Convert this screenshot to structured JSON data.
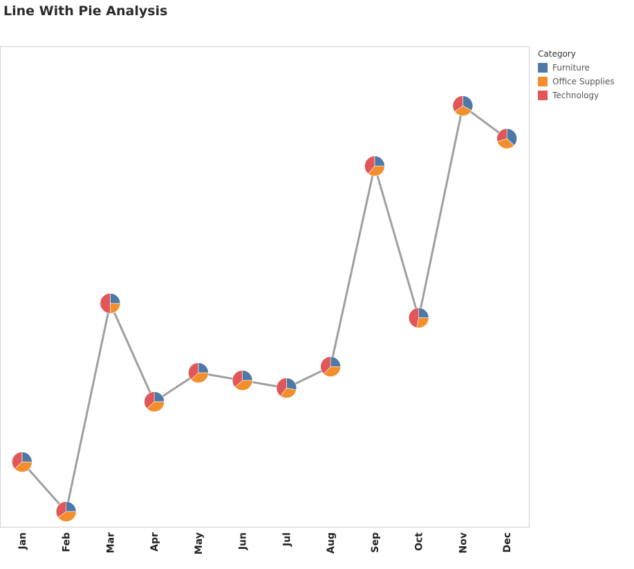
{
  "chart_data": {
    "type": "line",
    "title": "Line With Pie Analysis",
    "xlabel": "",
    "ylabel": "",
    "categories": [
      "Jan",
      "Feb",
      "Mar",
      "Apr",
      "May",
      "Jun",
      "Jul",
      "Aug",
      "Sep",
      "Oct",
      "Nov",
      "Dec"
    ],
    "values": [
      85,
      20,
      293,
      164,
      202,
      192,
      182,
      210,
      473,
      274,
      552,
      509
    ],
    "ylim": [
      0,
      630
    ],
    "grid": false,
    "legend": {
      "title": "Category",
      "position": "right",
      "entries": [
        {
          "name": "Furniture",
          "color": "#4e79a7"
        },
        {
          "name": "Office Supplies",
          "color": "#f28e2b"
        },
        {
          "name": "Technology",
          "color": "#e15759"
        }
      ]
    },
    "pies": [
      [
        0.25,
        0.38,
        0.37
      ],
      [
        0.25,
        0.4,
        0.35
      ],
      [
        0.25,
        0.25,
        0.5
      ],
      [
        0.25,
        0.38,
        0.37
      ],
      [
        0.25,
        0.38,
        0.37
      ],
      [
        0.25,
        0.38,
        0.37
      ],
      [
        0.28,
        0.32,
        0.4
      ],
      [
        0.25,
        0.37,
        0.38
      ],
      [
        0.25,
        0.36,
        0.39
      ],
      [
        0.25,
        0.28,
        0.47
      ],
      [
        0.33,
        0.32,
        0.35
      ],
      [
        0.37,
        0.33,
        0.3
      ]
    ],
    "line_color": "#9e9e9e"
  }
}
